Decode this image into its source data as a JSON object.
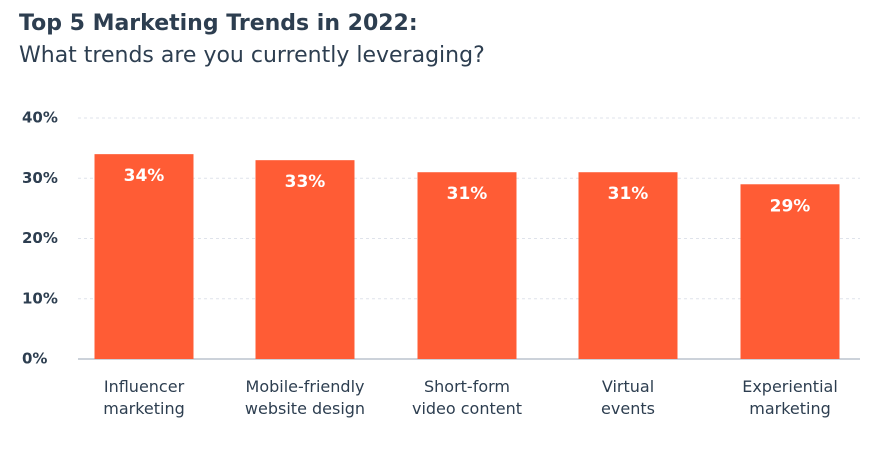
{
  "chart_data": {
    "type": "bar",
    "title": "Top 5 Marketing Trends in 2022:",
    "subtitle": "What trends are you currently leveraging?",
    "categories": [
      [
        "Influencer",
        "marketing"
      ],
      [
        "Mobile-friendly",
        "website design"
      ],
      [
        "Short-form",
        "video content"
      ],
      [
        "Virtual",
        "events"
      ],
      [
        "Experiential",
        "marketing"
      ]
    ],
    "values": [
      34,
      33,
      31,
      31,
      29
    ],
    "data_labels": [
      "34%",
      "33%",
      "31%",
      "31%",
      "29%"
    ],
    "yticks": [
      "0%",
      "10%",
      "20%",
      "30%",
      "40%"
    ],
    "ylim": [
      0,
      40
    ],
    "grid": true,
    "legend": "none",
    "colors": {
      "bar": "#ff5c35",
      "text": "#2d3e50",
      "grid": "#dfe3eb",
      "baseline": "#99a6b5"
    }
  }
}
